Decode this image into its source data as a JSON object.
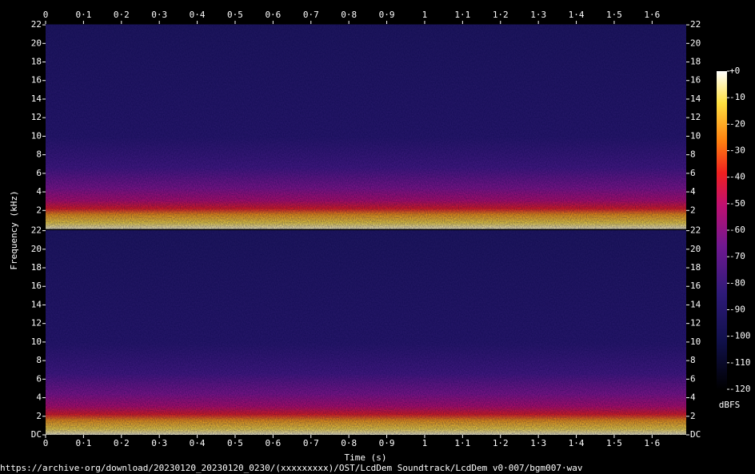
{
  "chart_data": {
    "type": "spectrogram",
    "xlabel": "Time (s)",
    "ylabel": "Frequency (kHz)",
    "xlim": [
      0,
      1.69
    ],
    "xticks": [
      0,
      {
        "value": 0.1,
        "label": "0·1"
      },
      {
        "value": 0.2,
        "label": "0·2"
      },
      {
        "value": 0.3,
        "label": "0·3"
      },
      {
        "value": 0.4,
        "label": "0·4"
      },
      {
        "value": 0.5,
        "label": "0·5"
      },
      {
        "value": 0.6,
        "label": "0·6"
      },
      {
        "value": 0.7,
        "label": "0·7"
      },
      {
        "value": 0.8,
        "label": "0·8"
      },
      {
        "value": 0.9,
        "label": "0·9"
      },
      1,
      {
        "value": 1.1,
        "label": "1·1"
      },
      {
        "value": 1.2,
        "label": "1·2"
      },
      {
        "value": 1.3,
        "label": "1·3"
      },
      {
        "value": 1.4,
        "label": "1·4"
      },
      {
        "value": 1.5,
        "label": "1·5"
      },
      {
        "value": 1.6,
        "label": "1·6"
      }
    ],
    "ylim": [
      0,
      22.05
    ],
    "channels": [
      {
        "yticks": [
          2,
          4,
          6,
          8,
          10,
          12,
          14,
          16,
          18,
          20,
          22
        ]
      },
      {
        "yticks": [
          {
            "value": 0,
            "label": "DC"
          },
          2,
          4,
          6,
          8,
          10,
          12,
          14,
          16,
          18,
          20,
          22
        ]
      }
    ],
    "colorbar": {
      "label": "dBFS",
      "clim": [
        -120,
        0
      ],
      "ticks": [
        {
          "value": 0,
          "label": "+0"
        },
        -10,
        -20,
        -30,
        -40,
        -50,
        -60,
        -70,
        -80,
        -90,
        -100,
        -110,
        -120
      ]
    },
    "caption": "https://archive·org/download/20230120_20230120_0230/(xxxxxxxxx)/OST/LcdDem Soundtrack/LcdDem v0·007/bgm007·wav"
  }
}
